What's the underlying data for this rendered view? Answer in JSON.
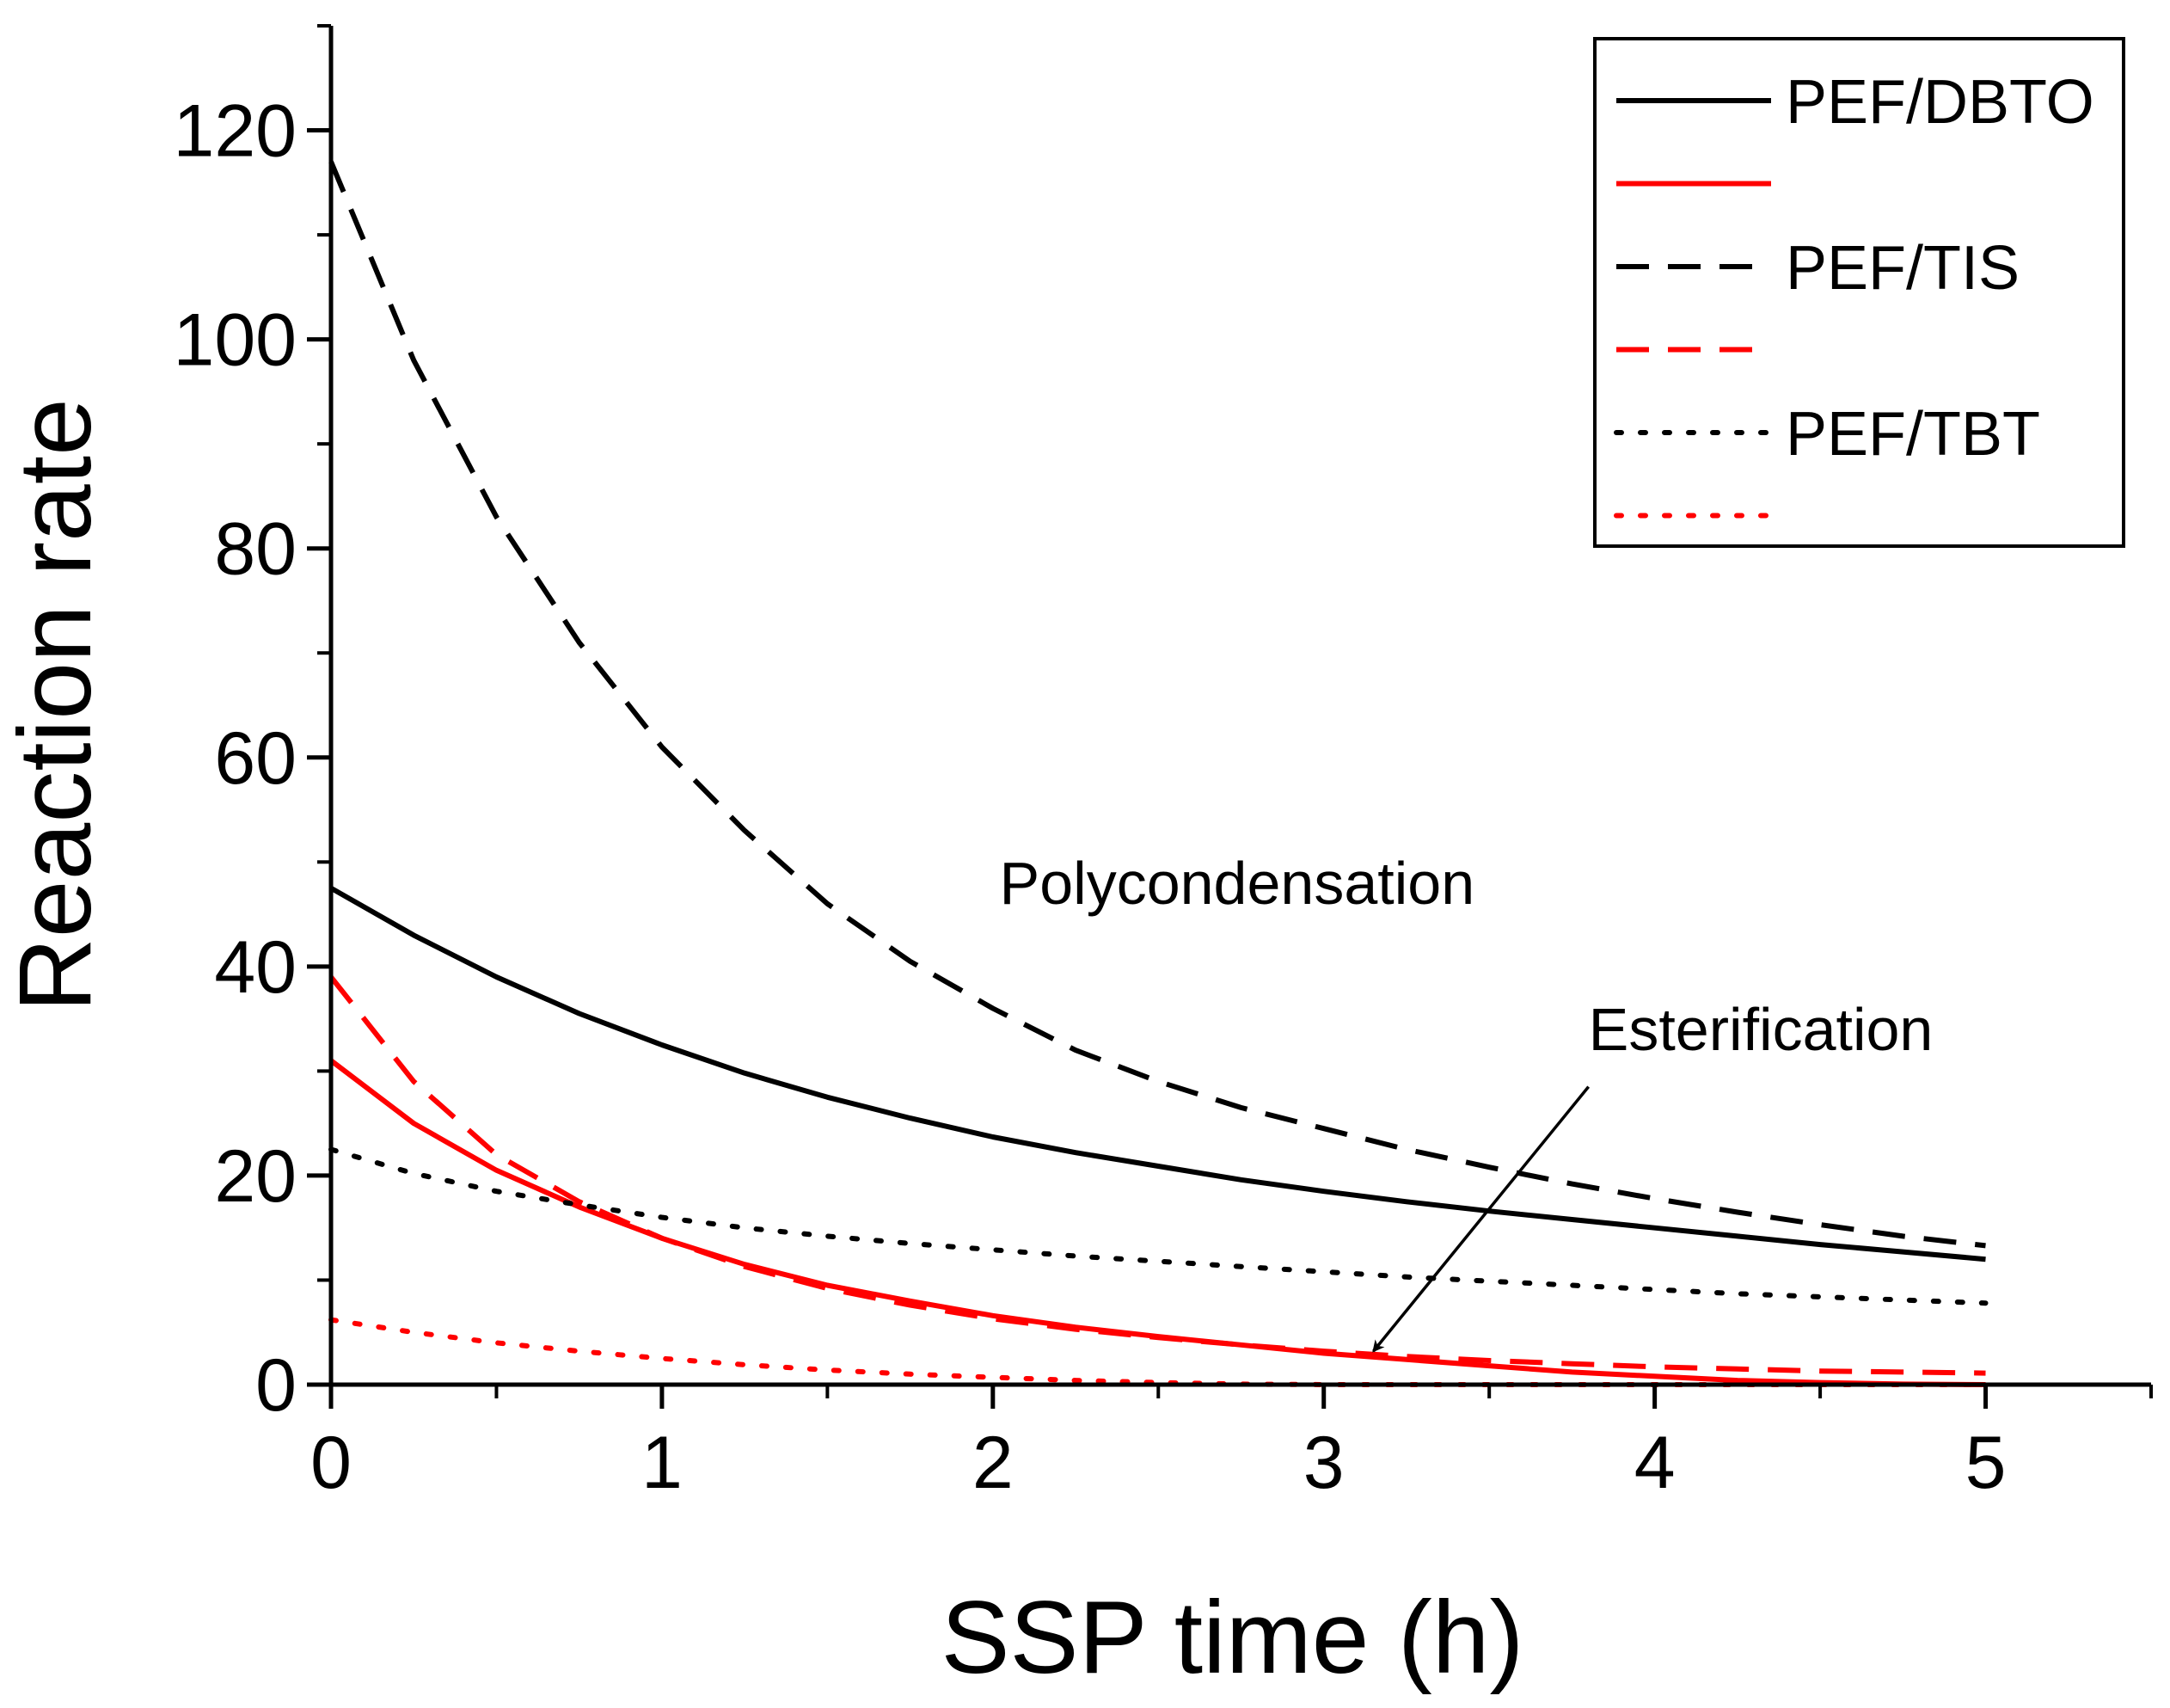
{
  "chart_data": {
    "type": "line",
    "title": "",
    "xlabel": "SSP time (h)",
    "ylabel": "Reaction rate",
    "xlim": [
      0,
      5.5
    ],
    "ylim": [
      0,
      130
    ],
    "xticks": [
      0,
      1,
      2,
      3,
      4,
      5
    ],
    "xtick_labels": [
      "0",
      "1",
      "2",
      "3",
      "4",
      "5"
    ],
    "yticks": [
      0,
      20,
      40,
      60,
      80,
      100,
      120
    ],
    "ytick_labels": [
      "0",
      "20",
      "40",
      "60",
      "80",
      "100",
      "120"
    ],
    "x_minor_step": 0.5,
    "y_minor_step": 10,
    "grid": false,
    "legend_position": "top-right",
    "series": [
      {
        "name": "PEF/DBTO",
        "color": "#000000",
        "dash": "solid",
        "x": [
          0,
          0.25,
          0.5,
          0.75,
          1,
          1.25,
          1.5,
          1.75,
          2,
          2.25,
          2.5,
          2.75,
          3,
          3.25,
          3.5,
          3.75,
          4,
          4.25,
          4.5,
          4.75,
          5
        ],
        "values": [
          47.5,
          43.0,
          39.0,
          35.5,
          32.5,
          29.8,
          27.5,
          25.5,
          23.7,
          22.2,
          20.9,
          19.6,
          18.5,
          17.5,
          16.6,
          15.8,
          15.0,
          14.2,
          13.4,
          12.7,
          12.0
        ]
      },
      {
        "name": "",
        "color": "#ff0000",
        "dash": "solid",
        "x": [
          0,
          0.25,
          0.5,
          0.75,
          1,
          1.25,
          1.5,
          1.75,
          2,
          2.25,
          2.5,
          2.75,
          3,
          3.25,
          3.5,
          3.75,
          4,
          4.25,
          4.5,
          4.75,
          5
        ],
        "values": [
          31.0,
          25.0,
          20.5,
          17.0,
          14.0,
          11.5,
          9.5,
          8.0,
          6.6,
          5.5,
          4.6,
          3.8,
          3.0,
          2.4,
          1.8,
          1.2,
          0.8,
          0.4,
          0.2,
          0.05,
          0
        ]
      },
      {
        "name": "PEF/TIS",
        "color": "#000000",
        "dash": "dashed",
        "x": [
          0,
          0.25,
          0.5,
          0.75,
          1,
          1.25,
          1.5,
          1.75,
          2,
          2.25,
          2.5,
          2.75,
          3,
          3.25,
          3.5,
          3.75,
          4,
          4.25,
          4.5,
          4.75,
          5
        ],
        "values": [
          117,
          98,
          83,
          71,
          61,
          53,
          46,
          40.5,
          36,
          32,
          29,
          26.5,
          24.5,
          22.5,
          20.8,
          19.2,
          17.8,
          16.5,
          15.3,
          14.2,
          13.3
        ]
      },
      {
        "name": "",
        "color": "#ff0000",
        "dash": "dashed",
        "x": [
          0,
          0.25,
          0.5,
          0.75,
          1,
          1.25,
          1.5,
          1.75,
          2,
          2.25,
          2.5,
          2.75,
          3,
          3.25,
          3.5,
          3.75,
          4,
          4.25,
          4.5,
          4.75,
          5
        ],
        "values": [
          39.0,
          29.0,
          22.0,
          17.5,
          14.0,
          11.3,
          9.2,
          7.6,
          6.3,
          5.3,
          4.5,
          3.8,
          3.2,
          2.7,
          2.3,
          2.0,
          1.7,
          1.5,
          1.3,
          1.2,
          1.1
        ]
      },
      {
        "name": "PEF/TBT",
        "color": "#000000",
        "dash": "dotted",
        "x": [
          0,
          0.25,
          0.5,
          0.75,
          1,
          1.25,
          1.5,
          1.75,
          2,
          2.25,
          2.5,
          2.75,
          3,
          3.25,
          3.5,
          3.75,
          4,
          4.25,
          4.5,
          4.75,
          5
        ],
        "values": [
          22.5,
          20.2,
          18.5,
          17.2,
          16.0,
          15.0,
          14.2,
          13.5,
          12.9,
          12.3,
          11.8,
          11.3,
          10.8,
          10.3,
          9.9,
          9.5,
          9.1,
          8.7,
          8.4,
          8.1,
          7.8
        ]
      },
      {
        "name": "",
        "color": "#ff0000",
        "dash": "dotted",
        "x": [
          0,
          0.25,
          0.5,
          0.75,
          1,
          1.25,
          1.5,
          1.75,
          2,
          2.25,
          2.5,
          2.75,
          3,
          3.25,
          3.5,
          3.75,
          4,
          4.25,
          4.5,
          4.75,
          5
        ],
        "values": [
          6.2,
          5.0,
          4.0,
          3.2,
          2.5,
          1.9,
          1.4,
          1.0,
          0.7,
          0.4,
          0.2,
          0.05,
          0,
          0,
          0,
          0,
          0,
          0,
          0,
          0,
          0
        ]
      }
    ],
    "annotations": [
      {
        "text": "Polycondensation",
        "x": 2.02,
        "y": 46
      },
      {
        "text": "Esterification",
        "x": 3.8,
        "y": 32,
        "arrow_to": [
          3.15,
          3.2
        ],
        "arrow_from": [
          3.8,
          28.5
        ]
      }
    ]
  }
}
